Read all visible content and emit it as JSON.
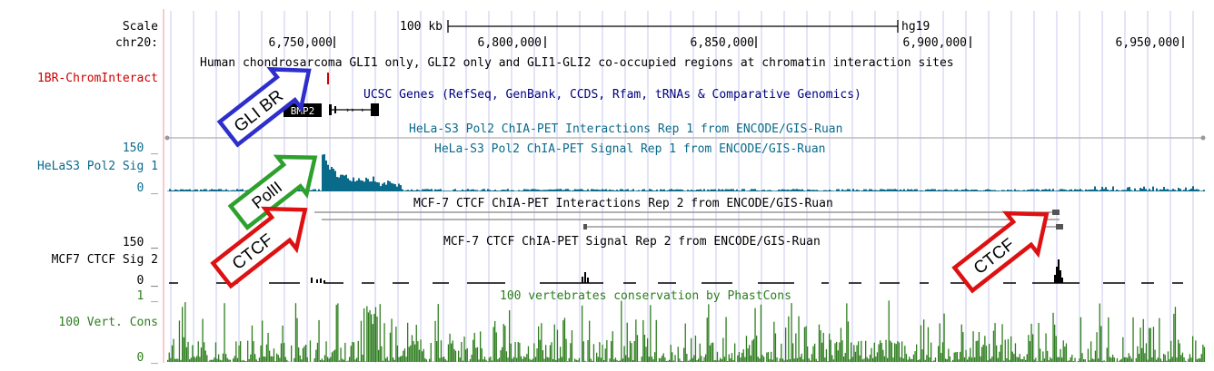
{
  "ruler": {
    "scale_label": "Scale",
    "chrom_label": "chr20:",
    "scale_text": "100 kb",
    "assembly": "hg19",
    "positions": [
      "6,750,000",
      "6,800,000",
      "6,850,000",
      "6,900,000",
      "6,950,000"
    ]
  },
  "tracks": {
    "gli_label": "1BR-ChromInteract",
    "gli_title": "Human chondrosarcoma GLI1 only, GLI2 only and GLI1-GLI2 co-occupied regions at chromatin interaction sites",
    "genes_title": "UCSC Genes (RefSeq, GenBank, CCDS, Rfam, tRNAs & Comparative Genomics)",
    "gene_name": "BMP2",
    "hela_inter_title": "HeLa-S3 Pol2 ChIA-PET Interactions Rep 1 from ENCODE/GIS-Ruan",
    "hela_sig_title": "HeLa-S3 Pol2 ChIA-PET Signal Rep 1 from ENCODE/GIS-Ruan",
    "hela_label": "HeLaS3 Pol2 Sig 1",
    "hela_max": "150 _",
    "hela_min": "0 _",
    "mcf_inter_title": "MCF-7 CTCF ChIA-PET Interactions Rep 2 from ENCODE/GIS-Ruan",
    "mcf_sig_title": "MCF-7 CTCF ChIA-PET Signal Rep 2 from ENCODE/GIS-Ruan",
    "mcf_label": "MCF7 CTCF Sig 2",
    "mcf_max": "150 _",
    "mcf_min": "0 _",
    "cons_title": "100 vertebrates conservation by PhastCons",
    "cons_label": "100 Vert. Cons",
    "cons_max": "1 _",
    "cons_min": "0 _"
  },
  "annotations": {
    "gli_br": "GLI BR",
    "polii": "PolII",
    "ctcf_left": "CTCF",
    "ctcf_right": "CTCF"
  },
  "colors": {
    "ruler_text": "#000000",
    "gli_track": "#cc0000",
    "genes_track": "#000080",
    "hela_track": "#0a6a8a",
    "mcf_track": "#000000",
    "cons_track": "#2e7d1e",
    "gli_br_arrow": "#2e2ecc",
    "polii_arrow": "#2ea02e",
    "ctcf_arrow": "#dd1111",
    "grid_line": "#c8c8f0"
  }
}
